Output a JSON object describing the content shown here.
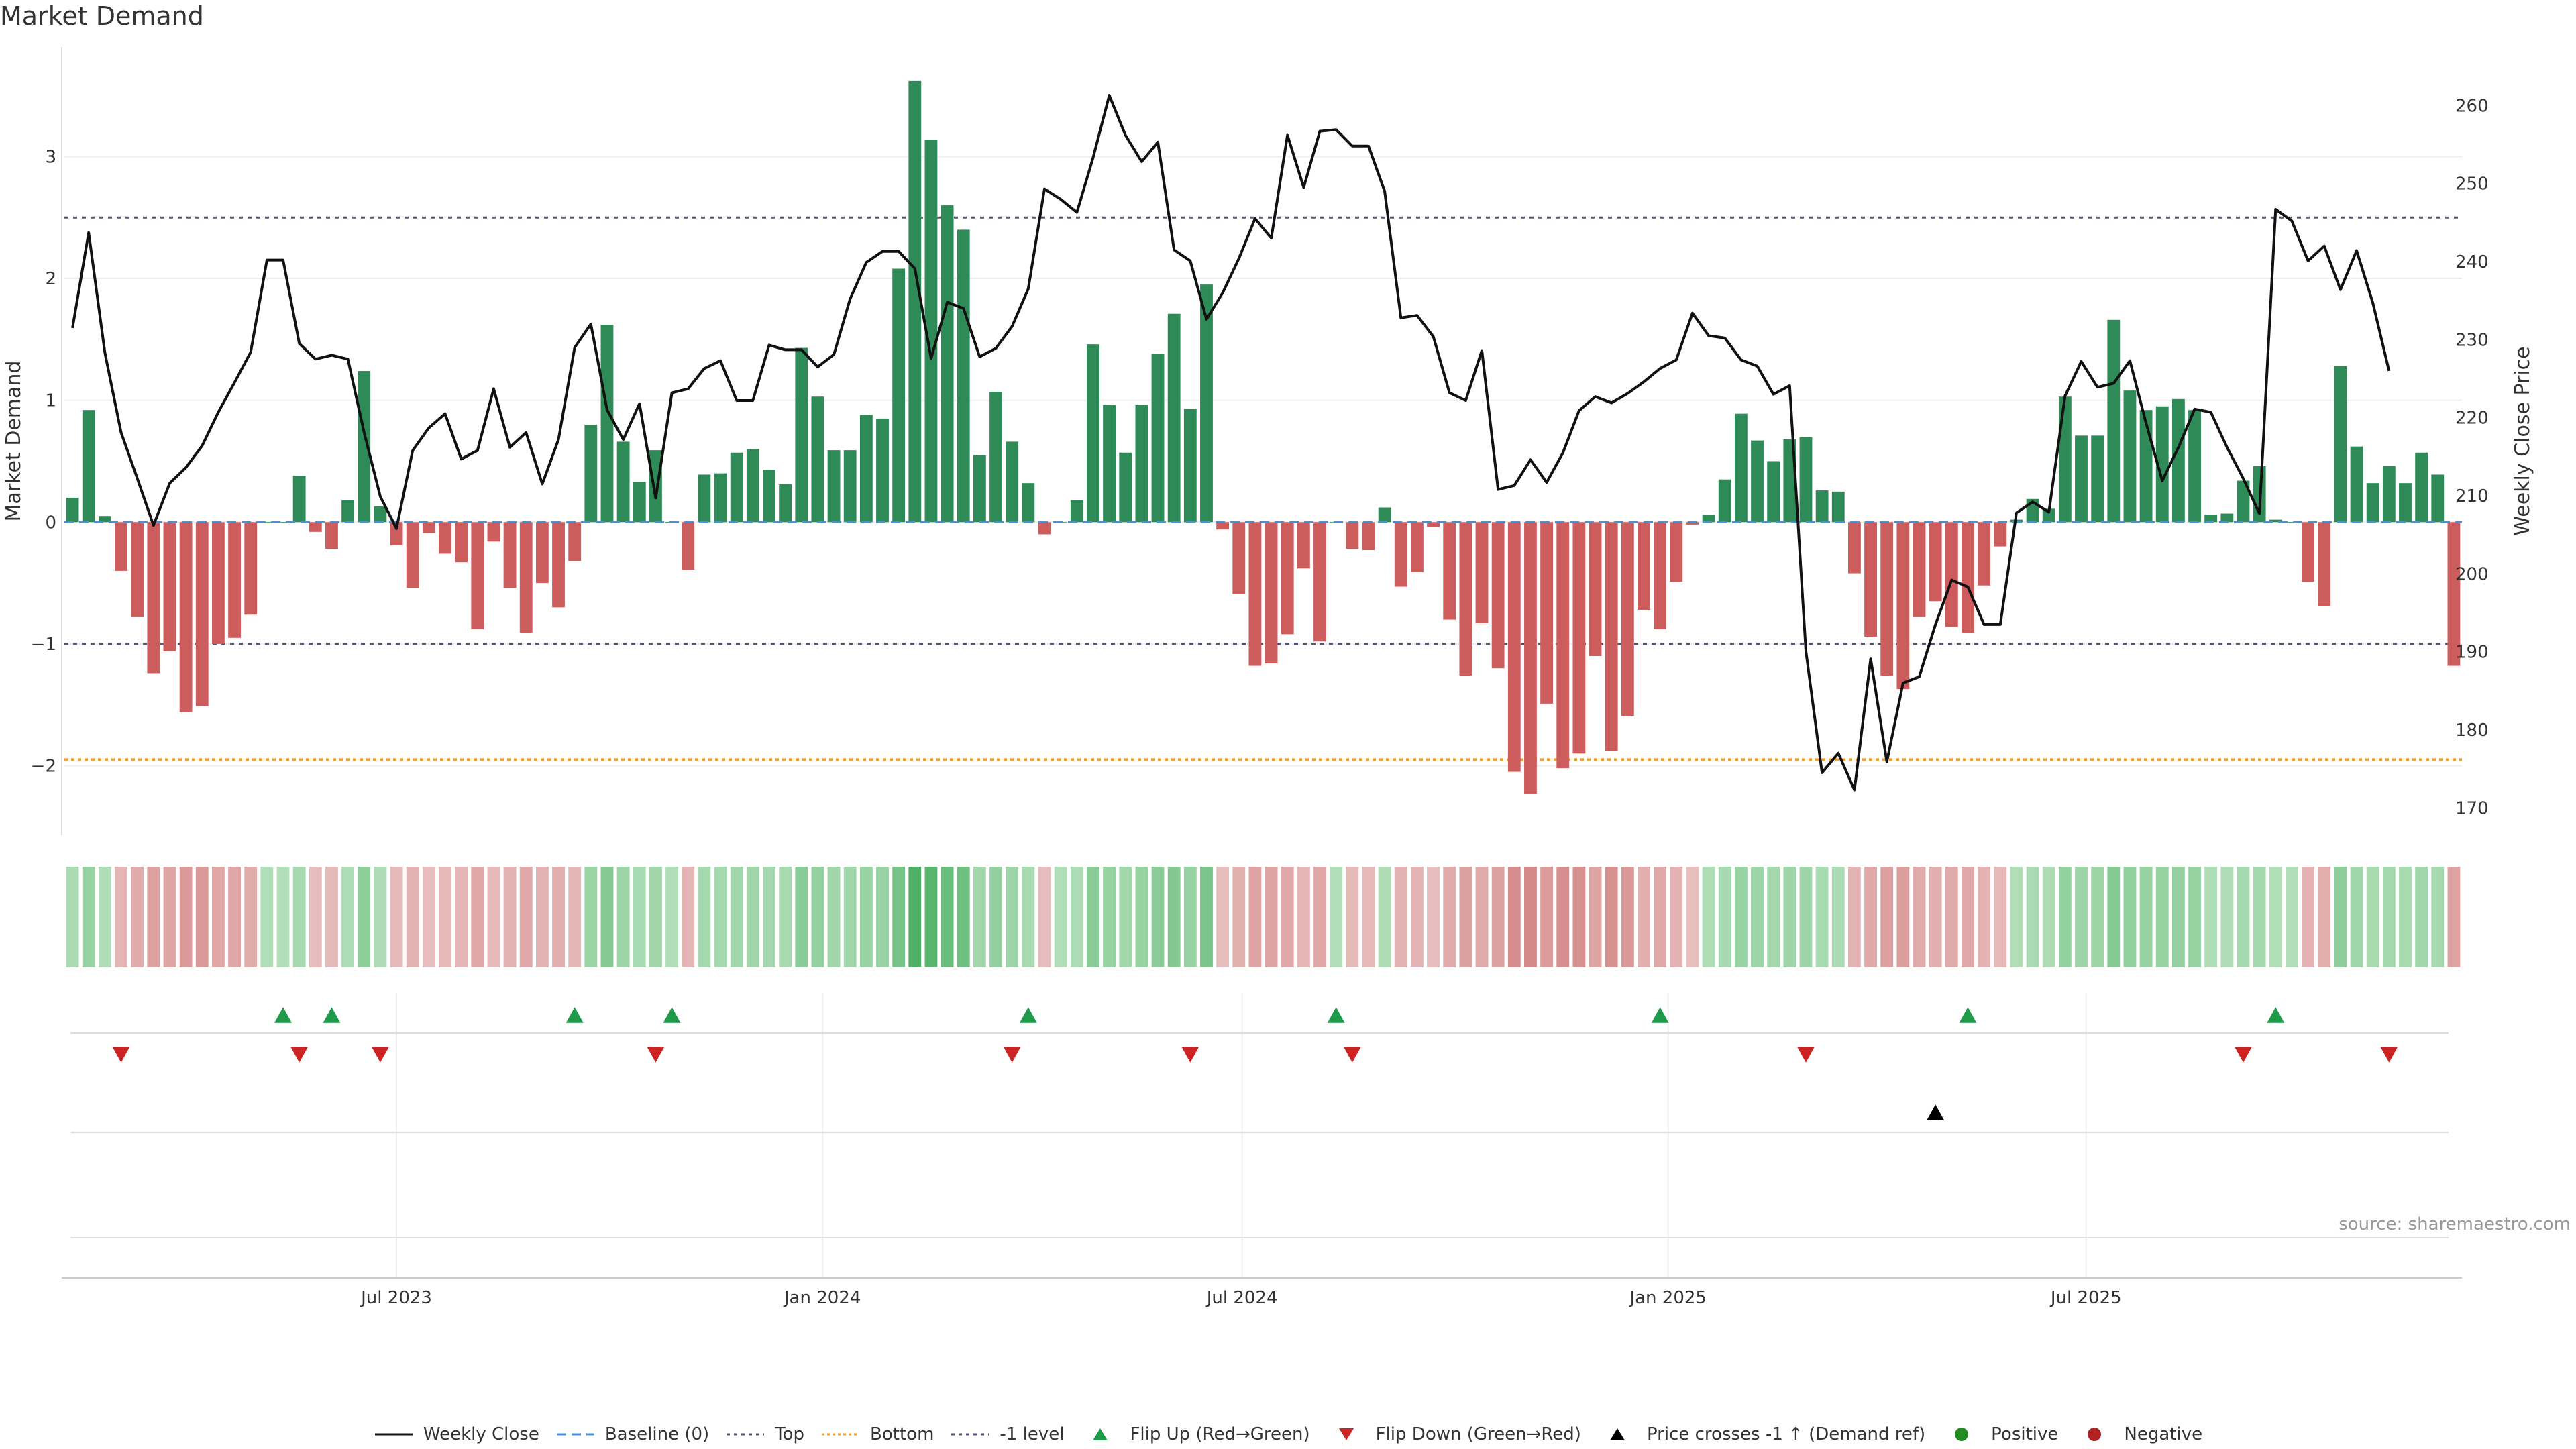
{
  "title": "Market Demand",
  "source": "source: sharemaestro.com",
  "colors": {
    "positive_bar": "#2e8b57",
    "negative_bar": "#cd5c5c",
    "price_line": "#111111",
    "baseline": "#4a90d9",
    "top": "#555577",
    "bottom": "#f0a030",
    "minus1": "#555577",
    "flip_up": "#1e9a4a",
    "flip_down": "#cc2222",
    "cross": "#000000",
    "positive_dot": "#228b22",
    "negative_dot": "#b22222"
  },
  "legend": [
    {
      "key": "weekly_close",
      "label": "Weekly Close"
    },
    {
      "key": "baseline",
      "label": "Baseline (0)"
    },
    {
      "key": "top",
      "label": "Top"
    },
    {
      "key": "bottom",
      "label": "Bottom"
    },
    {
      "key": "minus1",
      "label": "-1 level"
    },
    {
      "key": "flip_up",
      "label": "Flip Up (Red→Green)"
    },
    {
      "key": "flip_down",
      "label": "Flip Down (Green→Red)"
    },
    {
      "key": "cross",
      "label": "Price crosses -1 ↑ (Demand ref)"
    },
    {
      "key": "positive",
      "label": "Positive"
    },
    {
      "key": "negative",
      "label": "Negative"
    }
  ],
  "chart_data": {
    "type": "bar",
    "title": "Market Demand",
    "ylabel": "Market Demand",
    "y2label": "Weekly Close Price",
    "ylim": [
      -2.57,
      3.9
    ],
    "y2lim": [
      166.5,
      267.5
    ],
    "yticks": [
      -2,
      -1,
      0,
      1,
      2,
      3
    ],
    "ytick_labels": [
      "−2",
      "−1",
      "0",
      "1",
      "2",
      "3"
    ],
    "y2ticks": [
      170,
      180,
      190,
      200,
      210,
      220,
      230,
      240,
      250,
      260
    ],
    "y2tick_labels": [
      "170",
      "180",
      "190",
      "200",
      "210",
      "220",
      "230",
      "240",
      "250",
      "260"
    ],
    "reference_lines": {
      "top": 2.5,
      "bottom": -1.95,
      "minus1": -1,
      "baseline": 0
    },
    "x_ticks": [
      {
        "index": 20.5,
        "label": "Jul 2023"
      },
      {
        "index": 46.8,
        "label": "Jan 2024"
      },
      {
        "index": 72.7,
        "label": "Jul 2024"
      },
      {
        "index": 99,
        "label": "Jan 2025"
      },
      {
        "index": 124.8,
        "label": "Jul 2025"
      }
    ],
    "series": [
      {
        "name": "Market Demand",
        "values": [
          0.2,
          0.92,
          0.05,
          -0.4,
          -0.78,
          -1.24,
          -1.06,
          -1.56,
          -1.51,
          -1.0,
          -0.95,
          -0.76,
          0.0,
          0.0,
          0.38,
          -0.08,
          -0.22,
          0.18,
          1.24,
          0.13,
          -0.19,
          -0.54,
          -0.09,
          -0.26,
          -0.33,
          -0.88,
          -0.16,
          -0.54,
          -0.91,
          -0.5,
          -0.7,
          -0.32,
          0.8,
          1.62,
          0.66,
          0.33,
          0.59,
          0.0,
          -0.39,
          0.39,
          0.4,
          0.57,
          0.6,
          0.43,
          0.31,
          1.43,
          1.03,
          0.59,
          0.59,
          0.88,
          0.85,
          2.08,
          3.62,
          3.14,
          2.6,
          2.4,
          0.55,
          1.07,
          0.66,
          0.32,
          -0.1,
          0.0,
          0.18,
          1.46,
          0.96,
          0.57,
          0.96,
          1.38,
          1.71,
          0.93,
          1.95,
          -0.06,
          -0.59,
          -1.18,
          -1.16,
          -0.92,
          -0.38,
          -0.98,
          0.0,
          -0.22,
          -0.23,
          0.12,
          -0.53,
          -0.41,
          -0.04,
          -0.8,
          -1.26,
          -0.83,
          -1.2,
          -2.05,
          -2.23,
          -1.49,
          -2.02,
          -1.9,
          -1.1,
          -1.88,
          -1.59,
          -0.72,
          -0.88,
          -0.49,
          -0.02,
          0.06,
          0.35,
          0.89,
          0.67,
          0.5,
          0.68,
          0.7,
          0.26,
          0.25,
          -0.42,
          -0.94,
          -1.26,
          -1.37,
          -0.78,
          -0.65,
          -0.86,
          -0.91,
          -0.52,
          -0.2,
          0.02,
          0.19,
          0.11,
          1.03,
          0.71,
          0.71,
          1.66,
          1.08,
          0.92,
          0.95,
          1.01,
          0.92,
          0.06,
          0.07,
          0.34,
          0.46,
          0.02,
          0.0,
          -0.49,
          -0.69,
          1.28,
          0.62,
          0.32,
          0.46,
          0.32,
          0.57,
          0.39,
          -1.18
        ]
      },
      {
        "name": "Weekly Close",
        "values": [
          231.5,
          243.7,
          228.3,
          218.1,
          212.2,
          206.2,
          211.6,
          213.6,
          216.4,
          220.7,
          224.5,
          228.4,
          240.2,
          240.2,
          229.5,
          227.5,
          228.0,
          227.5,
          218.1,
          209.9,
          205.8,
          215.8,
          218.7,
          220.5,
          214.7,
          215.8,
          223.7,
          216.2,
          218.1,
          211.5,
          217.2,
          229.0,
          232.0,
          221.0,
          217.2,
          221.8,
          209.7,
          223.2,
          223.7,
          226.3,
          227.3,
          222.2,
          222.2,
          229.3,
          228.7,
          228.7,
          226.5,
          228.1,
          235.2,
          239.9,
          241.3,
          241.3,
          239.1,
          227.6,
          234.8,
          234.0,
          227.8,
          228.9,
          231.7,
          236.5,
          249.3,
          248.0,
          246.3,
          253.3,
          261.3,
          256.2,
          252.8,
          255.3,
          241.5,
          240.1,
          232.6,
          236.0,
          240.4,
          245.5,
          243.0,
          256.2,
          249.5,
          256.7,
          256.9,
          254.8,
          254.8,
          249.0,
          232.8,
          233.1,
          230.4,
          223.2,
          222.2,
          228.6,
          210.8,
          211.3,
          214.6,
          211.7,
          215.5,
          220.9,
          222.7,
          221.9,
          223.1,
          224.6,
          226.3,
          227.4,
          233.4,
          230.5,
          230.2,
          227.4,
          226.6,
          223.0,
          224.1,
          190.1,
          174.5,
          177.0,
          172.3,
          189.1,
          175.9,
          186.0,
          186.8,
          193.5,
          199.2,
          198.3,
          193.5,
          193.5,
          207.8,
          209.2,
          207.9,
          222.8,
          227.2,
          223.9,
          224.4,
          227.3,
          219.3,
          211.9,
          216.2,
          221.1,
          220.7,
          216.2,
          212.2,
          207.7,
          246.7,
          245.2,
          240.1,
          242.0,
          236.4,
          241.4,
          234.7,
          226.0
        ]
      },
      {
        "name": "Flip Up",
        "indices": [
          13,
          16,
          31,
          37,
          59,
          78,
          98,
          117,
          136
        ]
      },
      {
        "name": "Flip Down",
        "indices": [
          3,
          14,
          19,
          36,
          58,
          69,
          79,
          107,
          134,
          143
        ]
      },
      {
        "name": "Price crosses -1 ↑",
        "indices": [
          115
        ]
      }
    ]
  }
}
